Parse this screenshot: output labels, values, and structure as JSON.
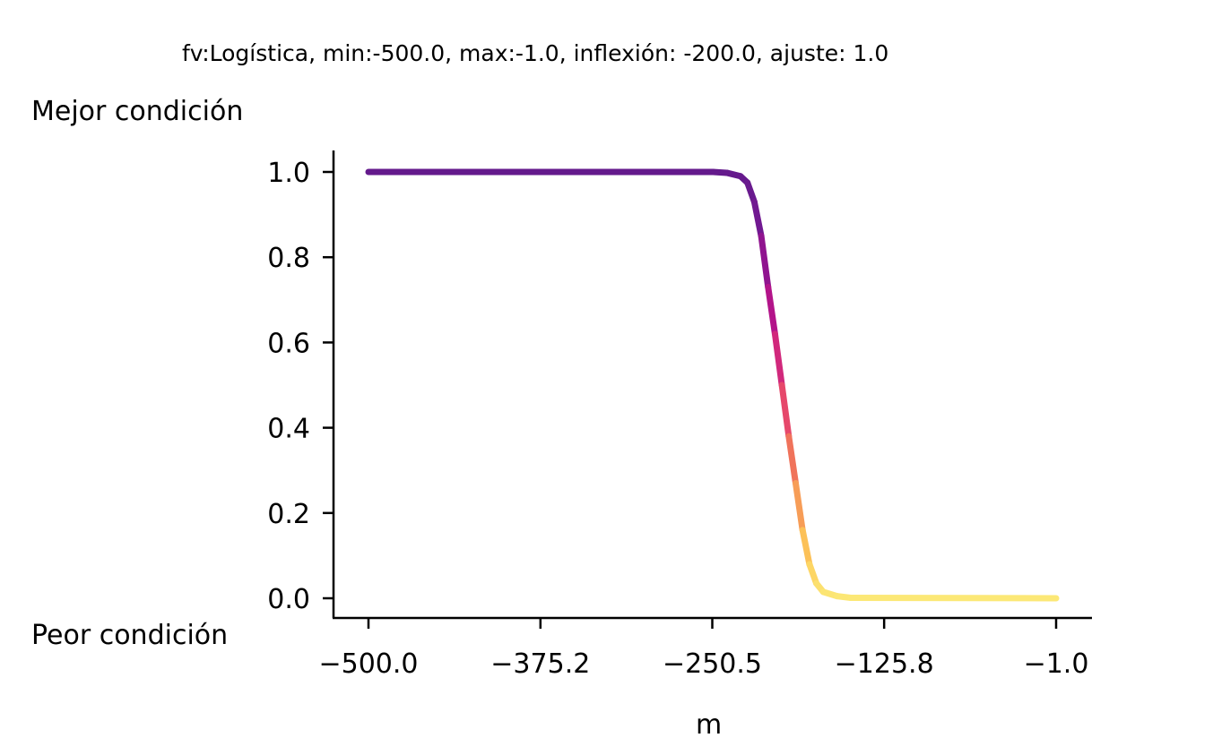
{
  "chart_data": {
    "type": "line",
    "title": "fv:Logística, min:-500.0, max:-1.0, inflexión: -200.0, ajuste: 1.0",
    "top_label": "Mejor condición",
    "bottom_label": "Peor condición",
    "xlabel": "m",
    "ylabel": "",
    "xlim": [
      -500.0,
      -1.0
    ],
    "ylim": [
      0.0,
      1.0
    ],
    "x_ticks": [
      -500.0,
      -375.2,
      -250.5,
      -125.8,
      -1.0
    ],
    "x_tick_labels": [
      "−500.0",
      "−375.2",
      "−250.5",
      "−125.8",
      "−1.0"
    ],
    "y_ticks": [
      0.0,
      0.2,
      0.4,
      0.6,
      0.8,
      1.0
    ],
    "y_tick_labels": [
      "0.0",
      "0.2",
      "0.4",
      "0.6",
      "0.8",
      "1.0"
    ],
    "grid": false,
    "colormap": "plasma",
    "curve": {
      "function": "logistic",
      "inflection": -200.0,
      "adjust": 1.0
    },
    "x": [
      -500,
      -250,
      -240,
      -230,
      -225,
      -220,
      -215,
      -210,
      -205,
      -200,
      -195,
      -190,
      -185,
      -180,
      -175,
      -170,
      -160,
      -150,
      -1
    ],
    "y": [
      1.0,
      1.0,
      0.998,
      0.99,
      0.975,
      0.93,
      0.85,
      0.73,
      0.62,
      0.5,
      0.38,
      0.27,
      0.16,
      0.08,
      0.035,
      0.015,
      0.005,
      0.001,
      0.0
    ]
  }
}
